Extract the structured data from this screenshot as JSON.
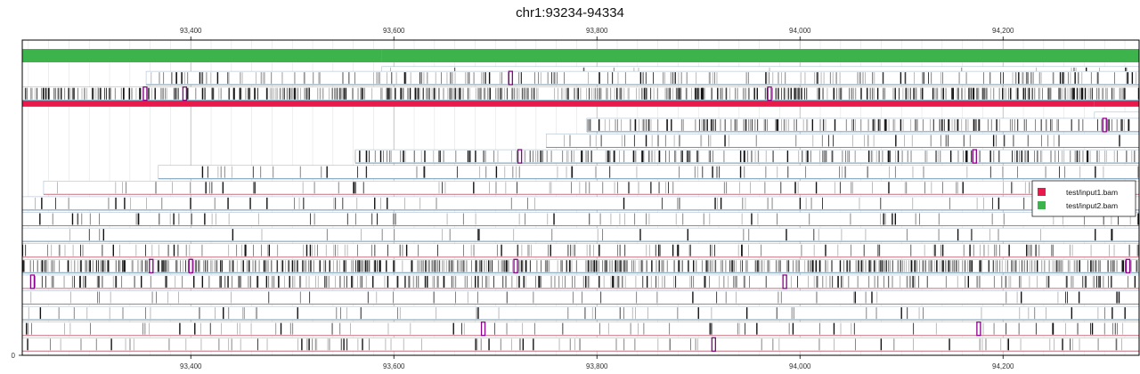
{
  "chart_data": {
    "type": "alignment-pileup",
    "title": "chr1:93234-94334",
    "x_range": [
      93234,
      94334
    ],
    "x_ticks": [
      93400,
      93600,
      93800,
      94000,
      94200
    ],
    "x_tick_labels": [
      "93,400",
      "93,600",
      "93,800",
      "94,000",
      "94,200"
    ],
    "y_tick_label": "0",
    "grid": true,
    "legend": {
      "placement": "right",
      "entries": [
        {
          "name": "test/input1.bam",
          "color": "#e8194b"
        },
        {
          "name": "test/input2.bam",
          "color": "#3cb44b"
        }
      ]
    },
    "coverage": [
      {
        "source": "test/input2.bam",
        "start": 93234,
        "end": 93588,
        "row": 0
      },
      {
        "source": "test/input2.bam",
        "start": 93588,
        "end": 94334,
        "row": 0
      },
      {
        "source": "test/input1.bam",
        "start": 93234,
        "end": 94290,
        "row": 3
      },
      {
        "source": "test/input1.bam",
        "start": 94290,
        "end": 94334,
        "row": 3
      }
    ],
    "reads": [
      {
        "start": 93588,
        "end": 94334,
        "row": 0.7,
        "strand": "+",
        "mm": 0.02,
        "ins": []
      },
      {
        "start": 93356,
        "end": 94334,
        "row": 1,
        "strand": "-",
        "mm": 0.18,
        "ins": [
          93715
        ]
      },
      {
        "start": 93234,
        "end": 94334,
        "row": 2,
        "strand": "-",
        "mm": 0.45,
        "ins": [
          93355,
          93394,
          93970
        ]
      },
      {
        "start": 94290,
        "end": 94334,
        "row": 3.6,
        "strand": "+",
        "mm": 0.0,
        "ins": []
      },
      {
        "start": 93790,
        "end": 94334,
        "row": 4,
        "strand": "-",
        "mm": 0.3,
        "ins": [
          94300
        ]
      },
      {
        "start": 93750,
        "end": 94334,
        "row": 5,
        "strand": "+",
        "mm": 0.08,
        "ins": []
      },
      {
        "start": 93562,
        "end": 94334,
        "row": 6,
        "strand": "-",
        "mm": 0.25,
        "ins": [
          93724,
          94172
        ]
      },
      {
        "start": 93368,
        "end": 94334,
        "row": 7,
        "strand": "-",
        "mm": 0.06,
        "ins": []
      },
      {
        "start": 93255,
        "end": 94334,
        "row": 8,
        "strand": "+",
        "mm": 0.07,
        "ins": []
      },
      {
        "start": 93234,
        "end": 94334,
        "row": 9,
        "strand": "-",
        "mm": 0.05,
        "ins": []
      },
      {
        "start": 93234,
        "end": 94334,
        "row": 10,
        "strand": "+",
        "mm": 0.06,
        "ins": []
      },
      {
        "start": 93234,
        "end": 94334,
        "row": 11,
        "strand": "-",
        "mm": 0.03,
        "ins": []
      },
      {
        "start": 93234,
        "end": 94334,
        "row": 12,
        "strand": "+",
        "mm": 0.12,
        "ins": []
      },
      {
        "start": 93234,
        "end": 94334,
        "row": 13,
        "strand": "-",
        "mm": 0.5,
        "ins": [
          93361,
          93400,
          93720,
          94323
        ]
      },
      {
        "start": 93234,
        "end": 94334,
        "row": 14,
        "strand": "+",
        "mm": 0.22,
        "ins": [
          93244,
          93985
        ]
      },
      {
        "start": 93234,
        "end": 94334,
        "row": 15,
        "strand": "+",
        "mm": 0.04,
        "ins": []
      },
      {
        "start": 93234,
        "end": 94334,
        "row": 16,
        "strand": "-",
        "mm": 0.05,
        "ins": []
      },
      {
        "start": 93234,
        "end": 94334,
        "row": 17,
        "strand": "+",
        "mm": 0.06,
        "ins": [
          93688,
          94176
        ]
      },
      {
        "start": 93234,
        "end": 94334,
        "row": 18,
        "strand": "+",
        "mm": 0.07,
        "ins": [
          93915
        ]
      }
    ],
    "colors": {
      "input1": "#e8194b",
      "input2": "#3cb44b",
      "read_plus": "#c9707f",
      "read_minus": "#6f97b8",
      "insertion": "#8a008a",
      "mismatch": "#222222",
      "grid": "#e3e3e3",
      "major_grid": "#b5b5b5"
    }
  }
}
